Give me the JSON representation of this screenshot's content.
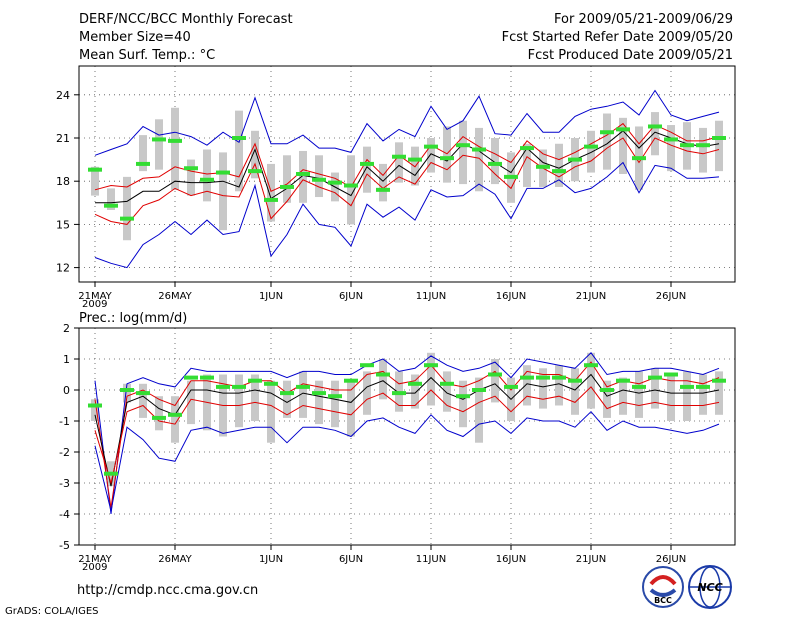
{
  "header": {
    "title_left": "DERF/NCC/BCC Monthly Forecast",
    "member_size": "Member Size=40",
    "title_right": "For 2009/05/21-2009/06/29",
    "refer_date": "Fcst Started Refer Date 2009/05/20",
    "produced_date": "Fcst Produced Date 2009/05/21"
  },
  "footer": {
    "url": "http://cmdp.ncc.cma.gov.cn",
    "credit": "GrADS: COLA/IGES",
    "logo_bcc_text": "BCC",
    "logo_ncc_text": "NCC"
  },
  "colors": {
    "box": "#c8c8c8",
    "median": "#000000",
    "quartile": "#e00000",
    "extreme": "#0000cc",
    "observed": "#33dd33",
    "grid": "#555555"
  },
  "chart_data": [
    {
      "type": "line",
      "title": "Mean Surf. Temp.: °C",
      "xlabel": "",
      "ylabel": "",
      "x_tick_labels": [
        "21MAY",
        "26MAY",
        "1JUN",
        "6JUN",
        "11JUN",
        "16JUN",
        "21JUN",
        "26JUN"
      ],
      "x_tick_days": [
        1,
        6,
        12,
        17,
        22,
        27,
        32,
        37
      ],
      "x_year_label": "2009",
      "yticks": [
        12,
        15,
        18,
        21,
        24
      ],
      "ylim": [
        11,
        26
      ],
      "xlim": [
        0,
        41
      ],
      "grid": true,
      "days": [
        1,
        2,
        3,
        4,
        5,
        6,
        7,
        8,
        9,
        10,
        11,
        12,
        13,
        14,
        15,
        16,
        17,
        18,
        19,
        20,
        21,
        22,
        23,
        24,
        25,
        26,
        27,
        28,
        29,
        30,
        31,
        32,
        33,
        34,
        35,
        36,
        37,
        38,
        39,
        40
      ],
      "series": [
        {
          "name": "ensemble max",
          "values": [
            12.7,
            12.3,
            12.0,
            13.6,
            14.3,
            15.2,
            14.3,
            15.3,
            14.3,
            14.5,
            17.7,
            12.8,
            14.3,
            16.4,
            15.0,
            14.8,
            13.5,
            16.4,
            15.5,
            16.2,
            15.3,
            17.4,
            16.9,
            17.0,
            17.8,
            17.1,
            15.4,
            17.5,
            17.5,
            18.1,
            17.2,
            17.5,
            18.3,
            19.3,
            17.2,
            19.1,
            18.9,
            18.2,
            18.2,
            18.3
          ]
        },
        {
          "name": "upper quartile",
          "values": [
            15.7,
            15.2,
            15.0,
            16.3,
            16.7,
            17.5,
            17.0,
            17.3,
            17.0,
            16.9,
            19.2,
            15.4,
            16.6,
            18.1,
            17.6,
            17.2,
            16.3,
            18.5,
            17.5,
            18.3,
            17.8,
            19.3,
            18.8,
            19.8,
            19.6,
            18.5,
            17.5,
            19.7,
            18.9,
            18.3,
            19.0,
            19.4,
            20.3,
            21.0,
            19.3,
            21.0,
            20.5,
            20.1,
            19.9,
            20.2
          ]
        },
        {
          "name": "median",
          "values": [
            16.5,
            16.5,
            16.6,
            17.3,
            17.3,
            18.0,
            17.9,
            17.9,
            18.0,
            17.6,
            20.2,
            16.8,
            17.5,
            18.4,
            18.2,
            17.6,
            17.0,
            19.0,
            18.0,
            19.1,
            18.4,
            19.9,
            19.4,
            20.6,
            20.1,
            19.3,
            18.6,
            20.3,
            19.3,
            18.9,
            19.5,
            20.0,
            20.6,
            21.5,
            20.3,
            21.4,
            21.0,
            20.6,
            20.4,
            20.6
          ]
        },
        {
          "name": "lower quartile",
          "values": [
            17.4,
            17.7,
            17.6,
            18.2,
            18.3,
            19.0,
            18.7,
            18.5,
            18.6,
            18.3,
            20.6,
            17.3,
            17.8,
            18.8,
            18.5,
            18.2,
            17.6,
            19.5,
            18.4,
            19.8,
            19.0,
            20.5,
            19.9,
            21.1,
            20.4,
            19.9,
            19.3,
            20.8,
            19.9,
            19.5,
            20.0,
            20.6,
            21.2,
            22.0,
            20.6,
            21.9,
            21.4,
            20.8,
            20.8,
            21.1
          ]
        },
        {
          "name": "ensemble min",
          "values": [
            19.8,
            20.2,
            20.6,
            21.8,
            21.2,
            21.4,
            21.1,
            20.5,
            21.4,
            20.7,
            23.8,
            20.6,
            20.6,
            21.2,
            20.3,
            20.3,
            20.0,
            22.0,
            20.8,
            21.6,
            21.1,
            23.2,
            21.6,
            22.2,
            23.9,
            21.3,
            21.2,
            22.7,
            21.4,
            21.4,
            22.5,
            23.0,
            23.2,
            23.5,
            22.6,
            24.3,
            22.6,
            22.2,
            22.5,
            22.8
          ]
        }
      ],
      "boxes": [
        [
          17.0,
          19.0
        ],
        [
          16.0,
          17.5
        ],
        [
          13.9,
          18.3
        ],
        [
          18.7,
          21.2
        ],
        [
          18.8,
          22.3
        ],
        [
          17.4,
          23.1
        ],
        [
          17.0,
          19.5
        ],
        [
          16.6,
          20.2
        ],
        [
          14.6,
          20.0
        ],
        [
          17.3,
          22.9
        ],
        [
          18.2,
          21.5
        ],
        [
          15.2,
          19.2
        ],
        [
          16.5,
          19.8
        ],
        [
          16.5,
          20.1
        ],
        [
          16.9,
          19.8
        ],
        [
          16.6,
          18.6
        ],
        [
          15.0,
          19.8
        ],
        [
          17.2,
          20.4
        ],
        [
          16.6,
          19.2
        ],
        [
          17.9,
          20.7
        ],
        [
          17.7,
          20.4
        ],
        [
          18.6,
          21.0
        ],
        [
          17.9,
          21.8
        ],
        [
          17.8,
          22.2
        ],
        [
          17.3,
          21.7
        ],
        [
          17.8,
          21.0
        ],
        [
          16.5,
          20.0
        ],
        [
          17.6,
          20.6
        ],
        [
          17.6,
          20.2
        ],
        [
          17.6,
          20.6
        ],
        [
          18.0,
          21.0
        ],
        [
          18.6,
          21.5
        ],
        [
          18.8,
          22.7
        ],
        [
          18.5,
          22.4
        ],
        [
          17.4,
          21.8
        ],
        [
          19.8,
          22.8
        ],
        [
          18.7,
          21.9
        ],
        [
          18.8,
          22.1
        ],
        [
          18.6,
          21.7
        ],
        [
          18.7,
          22.2
        ]
      ],
      "observed": [
        18.8,
        16.3,
        15.4,
        19.2,
        20.9,
        20.8,
        18.9,
        18.1,
        18.6,
        21.0,
        18.7,
        16.7,
        17.6,
        18.5,
        18.1,
        17.9,
        17.7,
        19.2,
        17.4,
        19.7,
        19.5,
        20.4,
        19.6,
        20.5,
        20.2,
        19.2,
        18.3,
        20.3,
        19.0,
        18.7,
        19.5,
        20.4,
        21.4,
        21.6,
        19.6,
        21.8,
        20.9,
        20.5,
        20.5,
        21.0
      ]
    },
    {
      "type": "line",
      "title": "Prec.: log(mm/d)",
      "xlabel": "",
      "ylabel": "",
      "x_tick_labels": [
        "21MAY",
        "26MAY",
        "1JUN",
        "6JUN",
        "11JUN",
        "16JUN",
        "21JUN",
        "26JUN"
      ],
      "x_tick_days": [
        1,
        6,
        12,
        17,
        22,
        27,
        32,
        37
      ],
      "x_year_label": "2009",
      "yticks": [
        -5,
        -4,
        -3,
        -2,
        -1,
        0,
        1,
        2
      ],
      "ylim": [
        -5,
        2
      ],
      "xlim": [
        0,
        41
      ],
      "grid": true,
      "days": [
        1,
        2,
        3,
        4,
        5,
        6,
        7,
        8,
        9,
        10,
        11,
        12,
        13,
        14,
        15,
        16,
        17,
        18,
        19,
        20,
        21,
        22,
        23,
        24,
        25,
        26,
        27,
        28,
        29,
        30,
        31,
        32,
        33,
        34,
        35,
        36,
        37,
        38,
        39,
        40
      ],
      "series": [
        {
          "name": "ensemble max",
          "values": [
            0.3,
            -4.0,
            0.2,
            0.4,
            0.2,
            0.1,
            0.7,
            0.6,
            0.6,
            0.6,
            0.6,
            0.6,
            0.4,
            0.6,
            0.6,
            0.5,
            0.5,
            0.8,
            1.0,
            0.6,
            0.7,
            1.1,
            0.8,
            0.6,
            0.7,
            0.9,
            0.4,
            1.0,
            0.9,
            0.8,
            0.7,
            1.2,
            0.5,
            0.6,
            0.6,
            0.7,
            0.7,
            0.6,
            0.5,
            0.7
          ]
        },
        {
          "name": "upper quartile",
          "values": [
            -0.3,
            -3.8,
            -0.2,
            0.0,
            -0.3,
            -0.5,
            0.3,
            0.3,
            0.2,
            0.1,
            0.3,
            0.3,
            -0.1,
            0.2,
            0.1,
            0.0,
            0.0,
            0.5,
            0.6,
            0.2,
            0.3,
            0.8,
            0.2,
            0.1,
            0.3,
            0.6,
            0.0,
            0.6,
            0.5,
            0.5,
            0.3,
            0.9,
            0.1,
            0.3,
            0.2,
            0.4,
            0.3,
            0.3,
            0.2,
            0.4
          ]
        },
        {
          "name": "median",
          "values": [
            -0.8,
            -3.1,
            -0.4,
            -0.2,
            -0.6,
            -0.8,
            0.0,
            0.0,
            -0.1,
            -0.1,
            0.0,
            -0.1,
            -0.4,
            -0.1,
            -0.2,
            -0.3,
            -0.4,
            0.1,
            0.3,
            -0.1,
            -0.1,
            0.4,
            -0.1,
            -0.3,
            0.0,
            0.2,
            -0.3,
            0.2,
            0.1,
            0.2,
            0.0,
            0.5,
            -0.2,
            0.0,
            -0.1,
            0.0,
            -0.1,
            -0.1,
            -0.1,
            0.0
          ]
        },
        {
          "name": "lower quartile",
          "values": [
            -1.3,
            -3.0,
            -0.7,
            -0.5,
            -1.0,
            -1.1,
            -0.3,
            -0.4,
            -0.5,
            -0.5,
            -0.4,
            -0.5,
            -0.8,
            -0.5,
            -0.6,
            -0.7,
            -0.8,
            -0.3,
            -0.1,
            -0.5,
            -0.5,
            0.0,
            -0.5,
            -0.7,
            -0.4,
            -0.2,
            -0.7,
            -0.2,
            -0.3,
            -0.2,
            -0.4,
            0.1,
            -0.6,
            -0.4,
            -0.5,
            -0.4,
            -0.5,
            -0.5,
            -0.5,
            -0.4
          ]
        },
        {
          "name": "ensemble min",
          "values": [
            -1.8,
            -3.9,
            -1.2,
            -1.6,
            -2.2,
            -2.3,
            -1.3,
            -1.2,
            -1.4,
            -1.3,
            -1.2,
            -1.2,
            -1.7,
            -1.2,
            -1.2,
            -1.3,
            -1.5,
            -1.0,
            -0.9,
            -1.2,
            -1.4,
            -0.8,
            -1.3,
            -1.5,
            -1.1,
            -1.0,
            -1.4,
            -0.9,
            -1.0,
            -1.0,
            -1.2,
            -0.7,
            -1.3,
            -1.0,
            -1.2,
            -1.2,
            -1.3,
            -1.4,
            -1.3,
            -1.1
          ]
        }
      ],
      "boxes": [
        [
          -1.0,
          -0.3
        ],
        [
          -3.1,
          -2.3
        ],
        [
          -0.4,
          0.2
        ],
        [
          -0.9,
          0.2
        ],
        [
          -1.3,
          -0.2
        ],
        [
          -1.7,
          -0.2
        ],
        [
          -1.1,
          0.3
        ],
        [
          -1.3,
          0.5
        ],
        [
          -1.5,
          0.5
        ],
        [
          -1.2,
          0.5
        ],
        [
          -1.0,
          0.5
        ],
        [
          -1.7,
          0.3
        ],
        [
          -0.9,
          0.3
        ],
        [
          -0.9,
          0.6
        ],
        [
          -1.1,
          0.3
        ],
        [
          -1.2,
          0.3
        ],
        [
          -1.5,
          0.3
        ],
        [
          -0.8,
          0.6
        ],
        [
          -0.3,
          1.0
        ],
        [
          -0.7,
          0.6
        ],
        [
          -0.6,
          0.5
        ],
        [
          -0.5,
          1.2
        ],
        [
          -0.7,
          0.6
        ],
        [
          -1.2,
          0.3
        ],
        [
          -1.7,
          0.4
        ],
        [
          -0.4,
          1.0
        ],
        [
          -1.0,
          0.4
        ],
        [
          -0.5,
          0.8
        ],
        [
          -0.6,
          0.7
        ],
        [
          -0.5,
          0.8
        ],
        [
          -0.8,
          0.7
        ],
        [
          -0.6,
          1.2
        ],
        [
          -0.9,
          0.3
        ],
        [
          -0.8,
          0.4
        ],
        [
          -0.9,
          0.6
        ],
        [
          -0.6,
          0.7
        ],
        [
          -1.0,
          0.5
        ],
        [
          -1.0,
          0.6
        ],
        [
          -0.8,
          0.5
        ],
        [
          -0.8,
          0.6
        ]
      ],
      "observed": [
        -0.5,
        -2.7,
        0.0,
        -0.1,
        -0.9,
        -0.8,
        0.4,
        0.4,
        0.1,
        0.1,
        0.3,
        0.2,
        -0.1,
        0.1,
        -0.1,
        -0.2,
        0.3,
        0.8,
        0.5,
        -0.1,
        0.2,
        0.8,
        0.2,
        -0.2,
        0.0,
        0.5,
        0.1,
        0.4,
        0.4,
        0.4,
        0.3,
        0.8,
        0.0,
        0.3,
        0.1,
        0.4,
        0.5,
        0.1,
        0.1,
        0.3
      ]
    }
  ]
}
